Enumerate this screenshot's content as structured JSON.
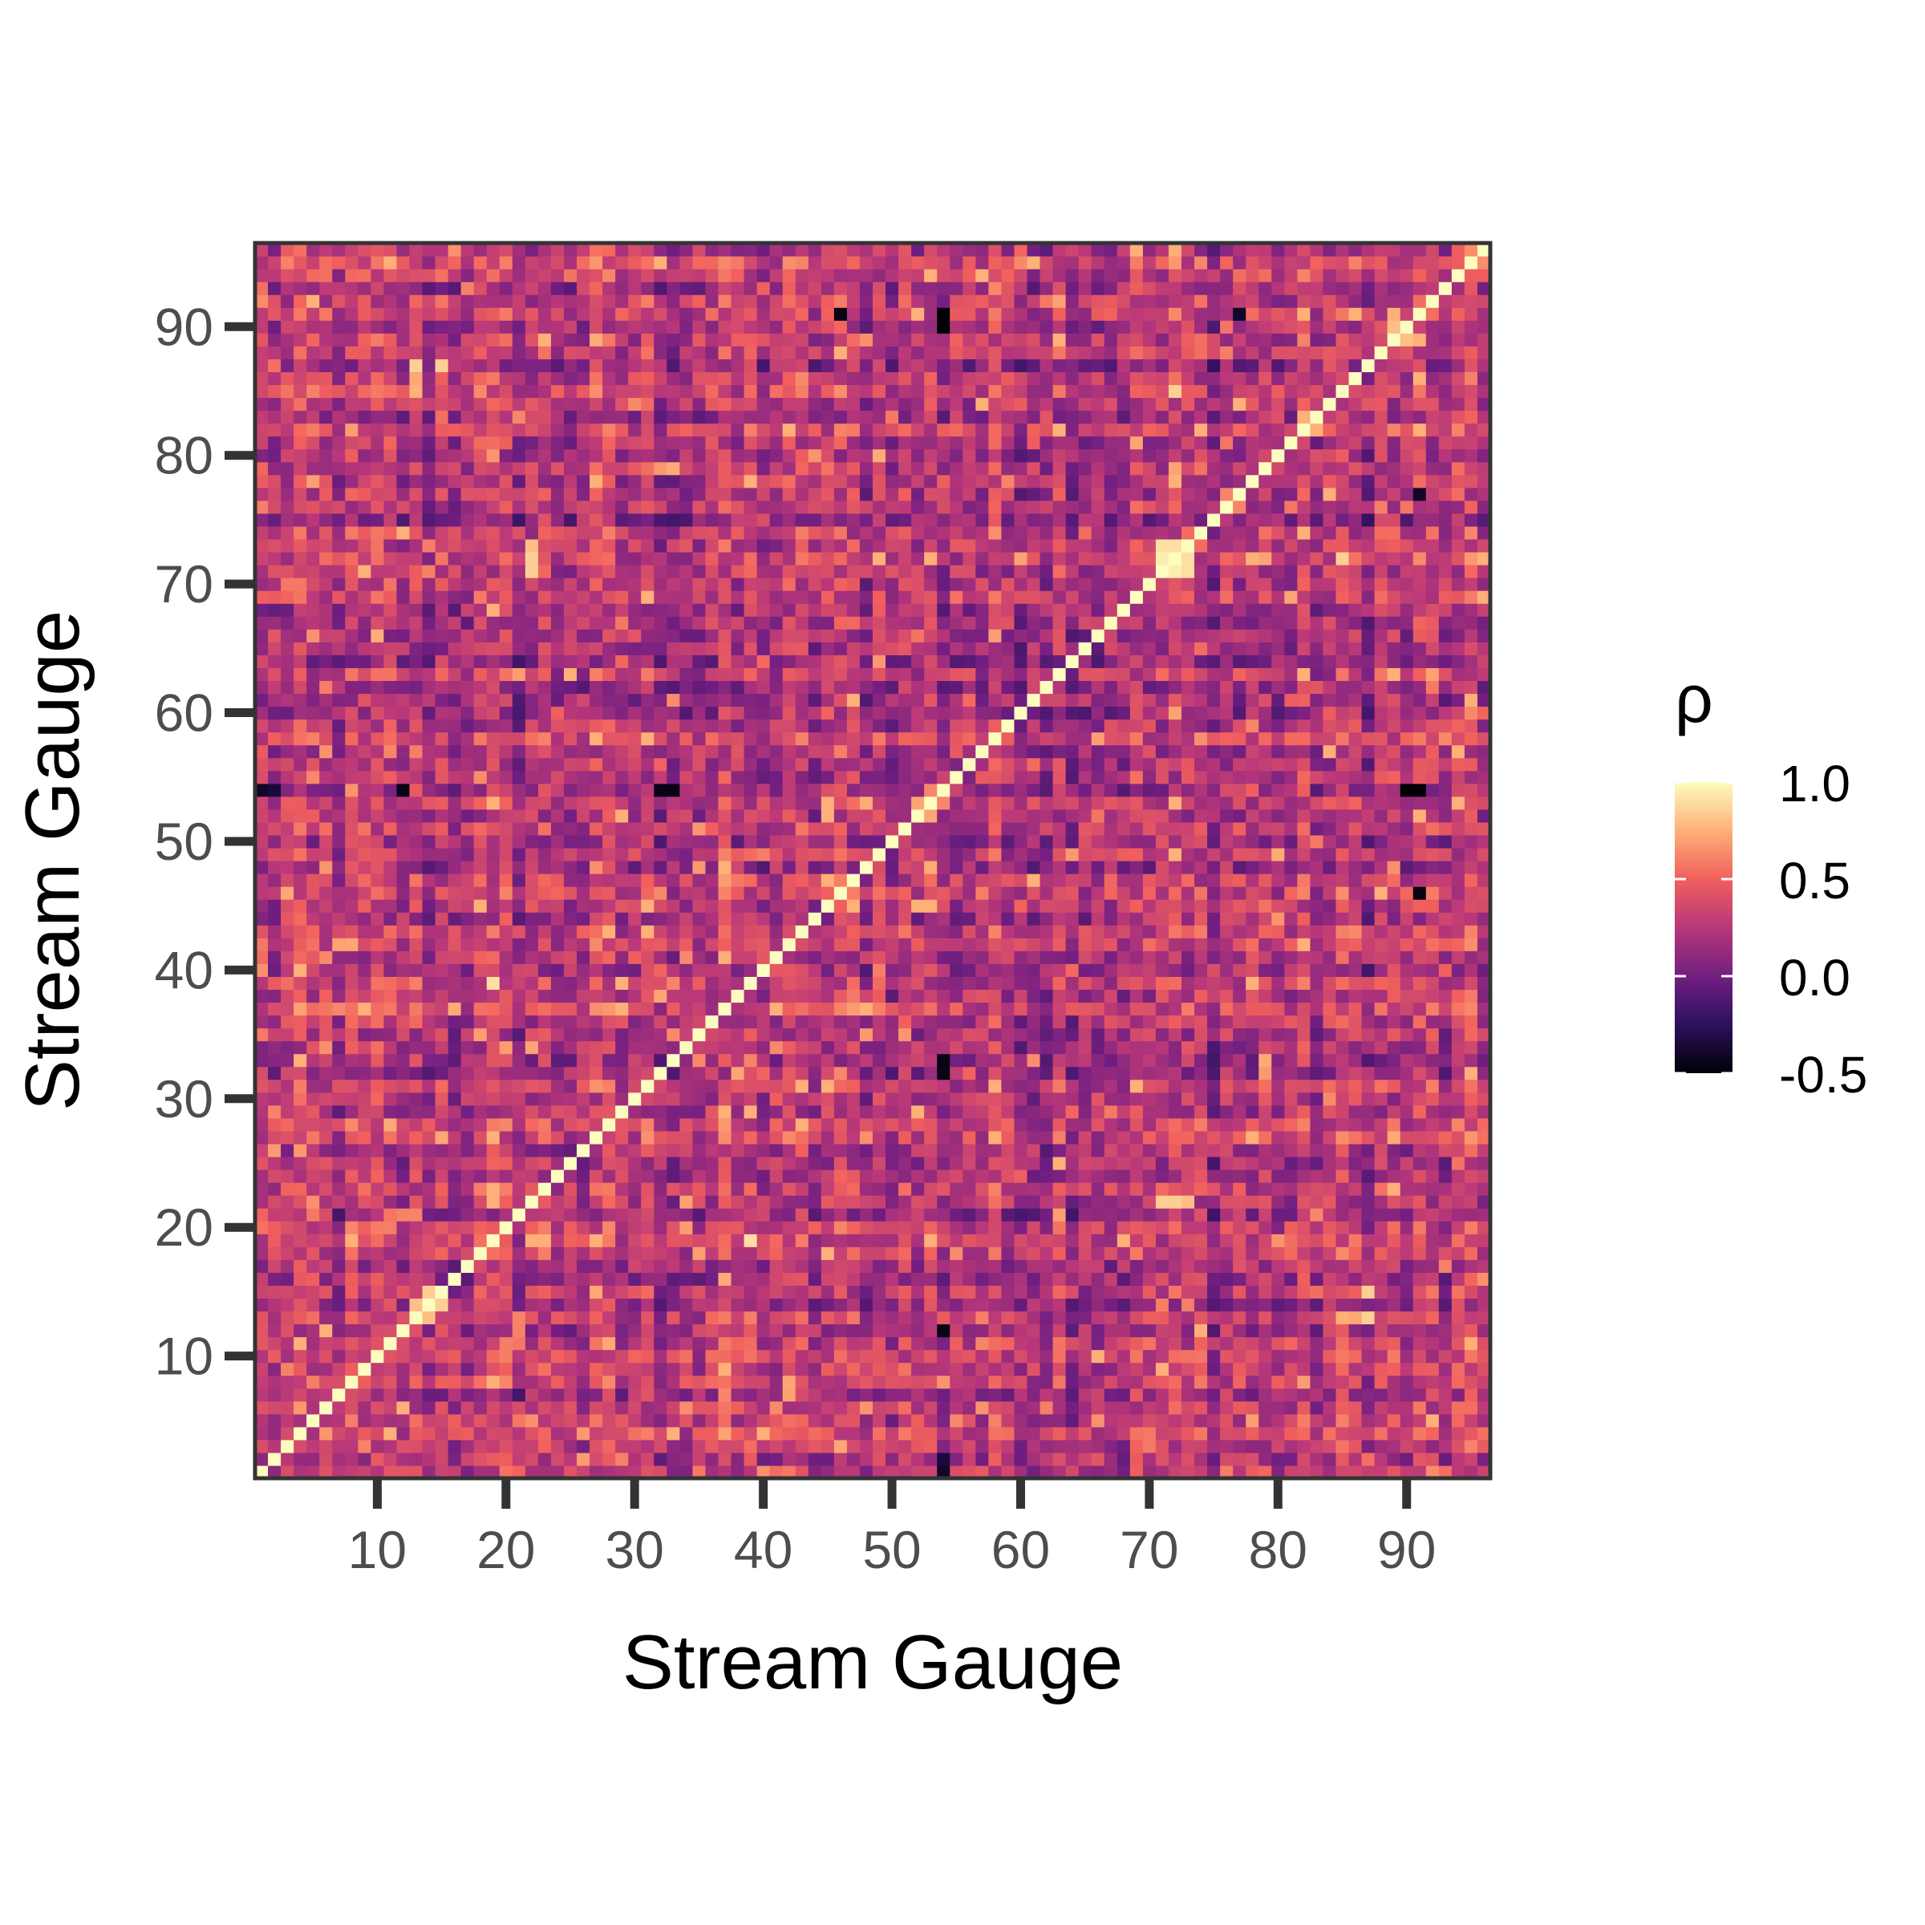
{
  "chart_data": {
    "type": "heatmap",
    "title": "",
    "xlabel": "Stream Gauge",
    "ylabel": "Stream Gauge",
    "n": 96,
    "x_range": [
      0.5,
      96.5
    ],
    "y_range": [
      0.5,
      96.5
    ],
    "x_ticks": [
      10,
      20,
      30,
      40,
      50,
      60,
      70,
      80,
      90
    ],
    "y_ticks": [
      10,
      20,
      30,
      40,
      50,
      60,
      70,
      80,
      90
    ],
    "diagonal_value": 1.0,
    "legend": {
      "title": "ρ",
      "placement": "right",
      "range": [
        -0.5,
        1.0
      ],
      "ticks": [
        1.0,
        0.5,
        0.0,
        -0.5
      ],
      "tick_labels": [
        "1.0",
        "0.5",
        "0.0",
        "-0.5"
      ],
      "colors": [
        "#000004",
        "#2c115f",
        "#721f81",
        "#b73779",
        "#f1605d",
        "#feb078",
        "#fcfdbf"
      ]
    },
    "grid": false,
    "note_cells": "symmetric correlation matrix; off-diagonal values approx. in [-0.5, 0.9], mostly 0.0–0.5",
    "highlight_pairs": [
      {
        "a": 71,
        "b": 72,
        "value": 0.95
      },
      {
        "a": 71,
        "b": 73,
        "value": 0.9
      },
      {
        "a": 72,
        "b": 73,
        "value": 0.9
      },
      {
        "a": 14,
        "b": 15,
        "value": 0.85
      },
      {
        "a": 13,
        "b": 14,
        "value": 0.8
      },
      {
        "a": 89,
        "b": 90,
        "value": 0.8
      },
      {
        "a": 82,
        "b": 83,
        "value": 0.75
      },
      {
        "a": 19,
        "b": 39,
        "value": 0.9
      },
      {
        "a": 22,
        "b": 71,
        "value": 0.85
      },
      {
        "a": 22,
        "b": 72,
        "value": 0.85
      },
      {
        "a": 22,
        "b": 73,
        "value": 0.8
      },
      {
        "a": 15,
        "b": 87,
        "value": 0.85
      },
      {
        "a": 13,
        "b": 87,
        "value": 0.85
      },
      {
        "a": 85,
        "b": 72,
        "value": 0.85
      },
      {
        "a": 12,
        "b": 54,
        "value": -0.45
      },
      {
        "a": 54,
        "b": 90,
        "value": -0.5
      },
      {
        "a": 54,
        "b": 91,
        "value": -0.5
      },
      {
        "a": 32,
        "b": 54,
        "value": -0.45
      },
      {
        "a": 33,
        "b": 54,
        "value": -0.45
      },
      {
        "a": 54,
        "b": 1,
        "value": -0.4
      },
      {
        "a": 46,
        "b": 91,
        "value": -0.45
      },
      {
        "a": 54,
        "b": 91,
        "value": -0.5
      },
      {
        "a": 77,
        "b": 91,
        "value": -0.4
      },
      {
        "a": 2,
        "b": 54,
        "value": -0.35
      }
    ]
  }
}
